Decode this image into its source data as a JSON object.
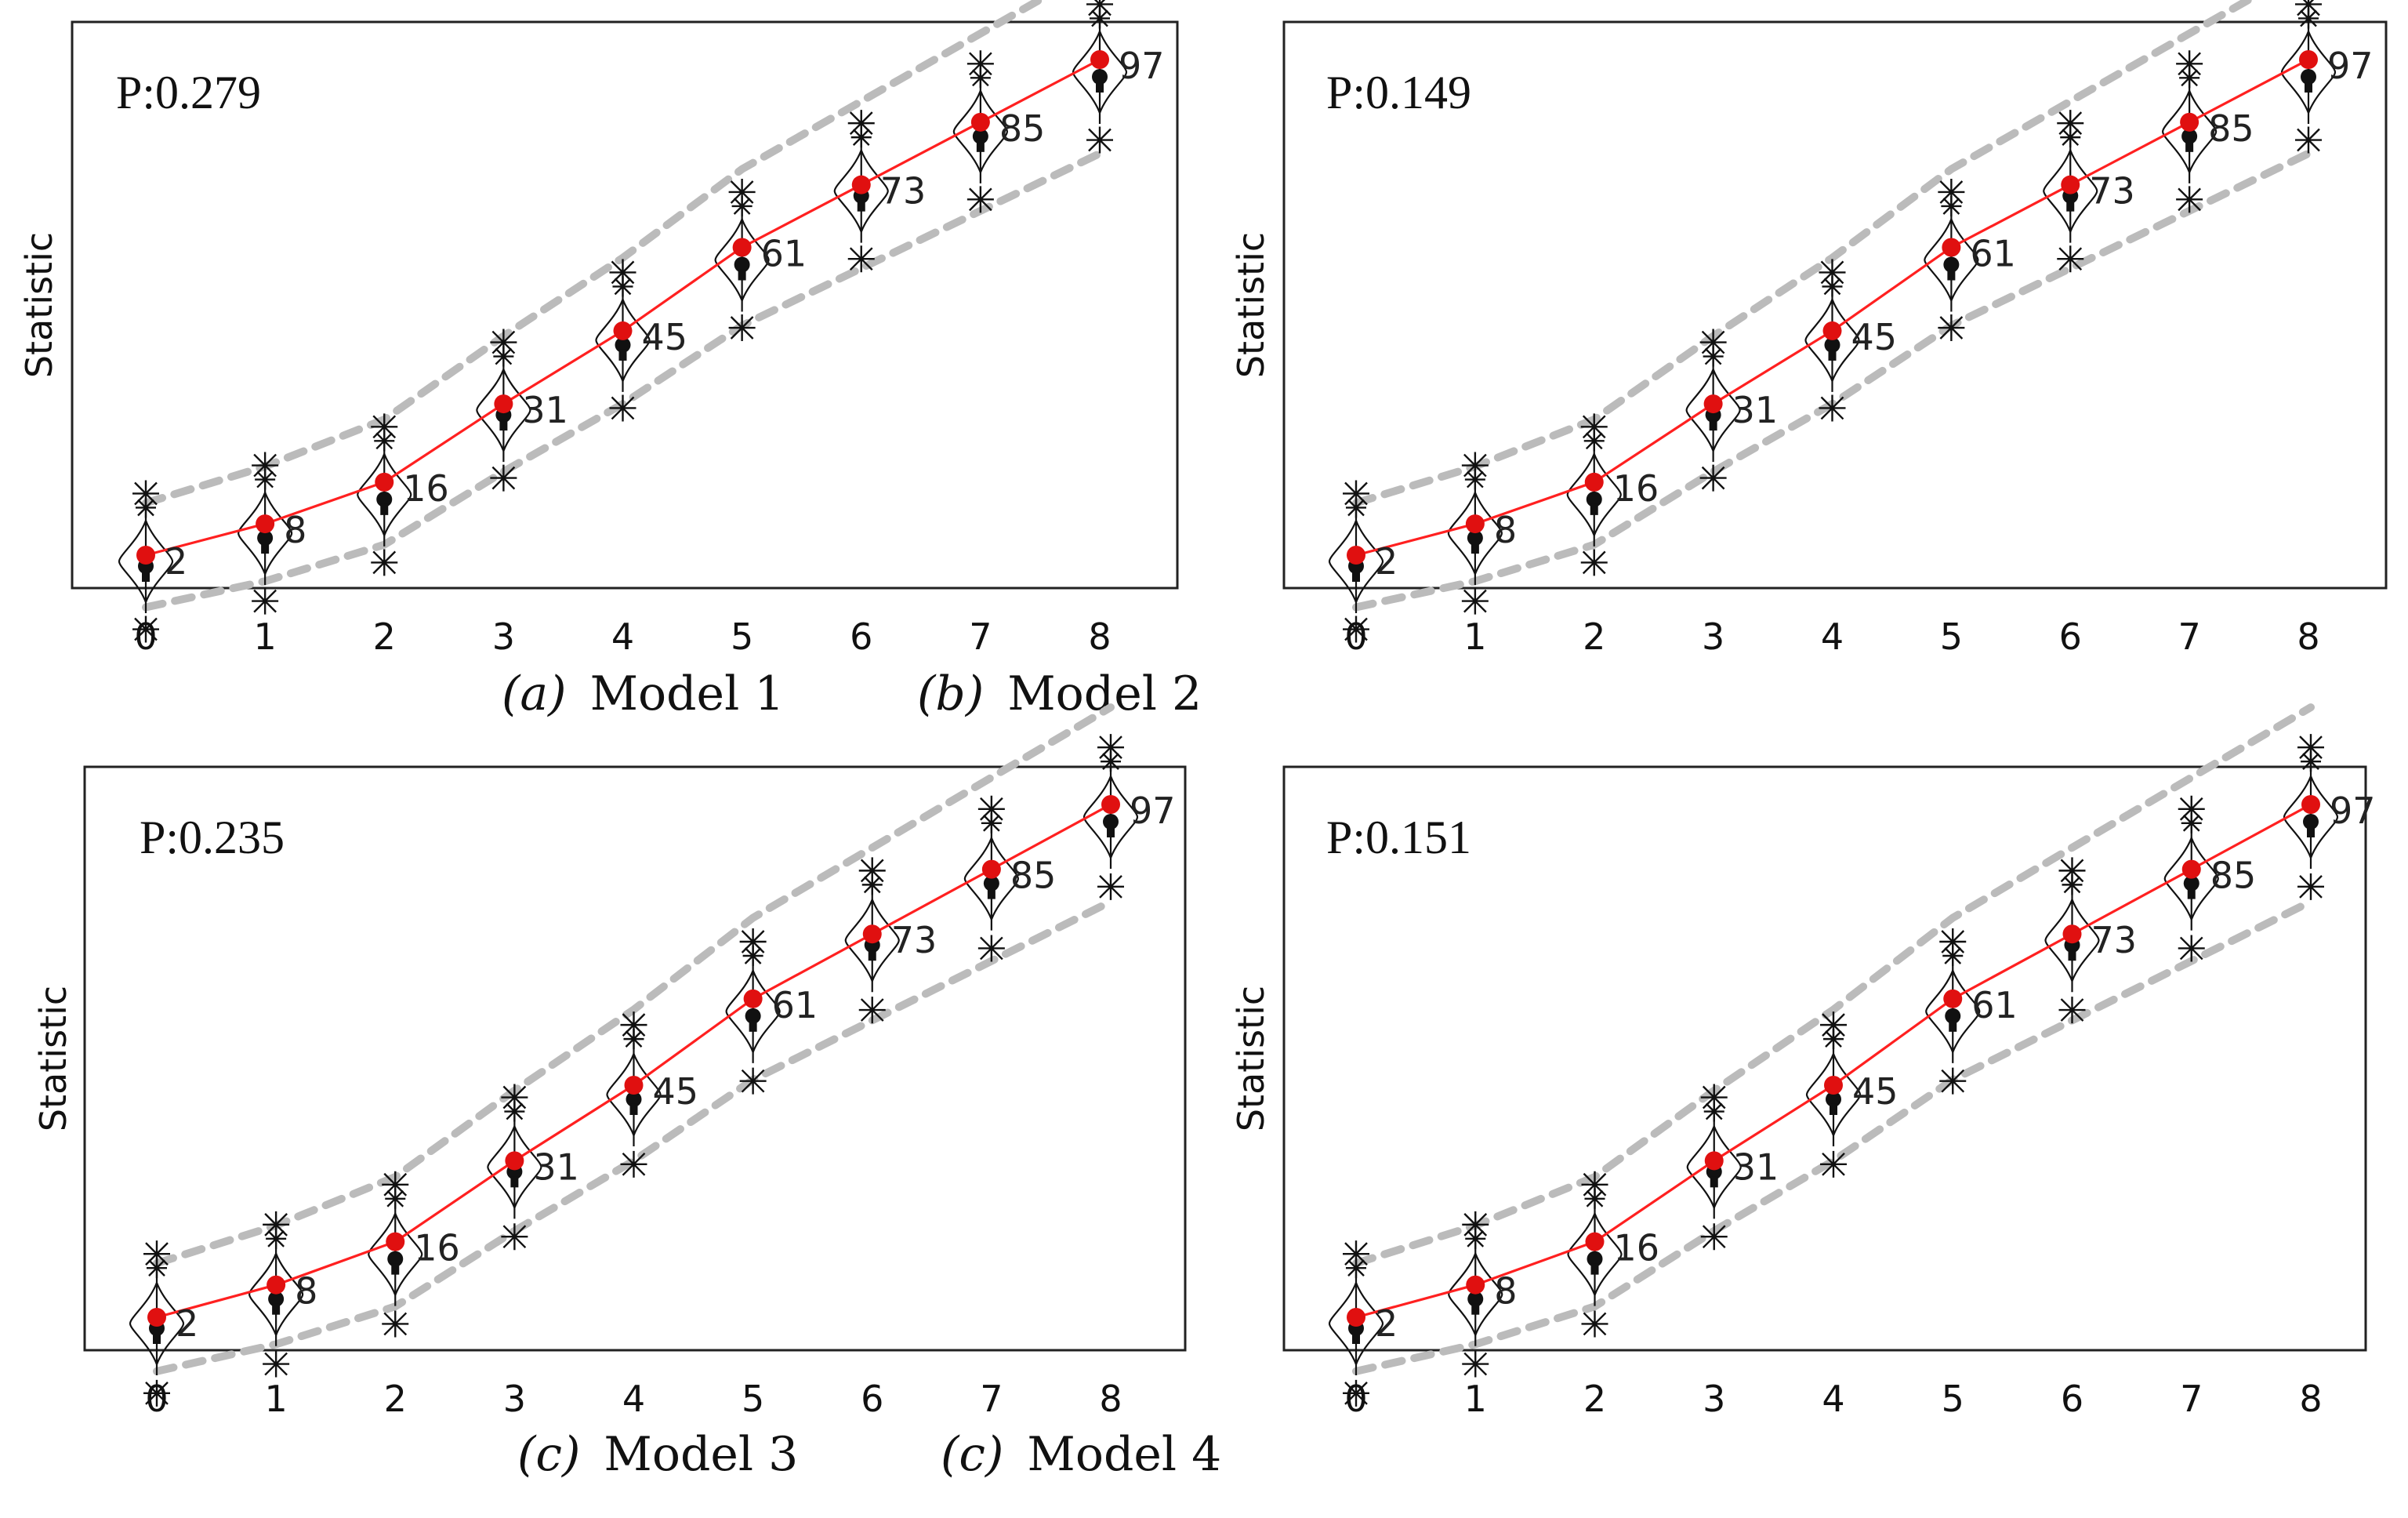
{
  "chart_data": [
    {
      "type": "line",
      "annotation": "P:0.279",
      "caption_label": "(a)",
      "caption_model": "Model 1",
      "ylabel": "Statistic",
      "xlabel": "",
      "x": [
        0,
        1,
        2,
        3,
        4,
        5,
        6,
        7,
        8
      ],
      "values": [
        2,
        8,
        16,
        31,
        45,
        61,
        73,
        85,
        97
      ],
      "data_labels": [
        "2",
        "8",
        "16",
        "31",
        "45",
        "61",
        "73",
        "85",
        "97"
      ],
      "colors": {
        "line": "#ff2020",
        "points": "#e01010",
        "band": "#bbbbbb",
        "glyphs": "#111111"
      }
    },
    {
      "type": "line",
      "annotation": "P:0.149",
      "caption_label": "(b)",
      "caption_model": "Model 2",
      "ylabel": "Statistic",
      "xlabel": "",
      "x": [
        0,
        1,
        2,
        3,
        4,
        5,
        6,
        7,
        8
      ],
      "values": [
        2,
        8,
        16,
        31,
        45,
        61,
        73,
        85,
        97
      ],
      "data_labels": [
        "2",
        "8",
        "16",
        "31",
        "45",
        "61",
        "73",
        "85",
        "97"
      ],
      "colors": {
        "line": "#ff2020",
        "points": "#e01010",
        "band": "#bbbbbb",
        "glyphs": "#111111"
      }
    },
    {
      "type": "line",
      "annotation": "P:0.235",
      "caption_label": "(c)",
      "caption_model": "Model 3",
      "ylabel": "Statistic",
      "xlabel": "",
      "x": [
        0,
        1,
        2,
        3,
        4,
        5,
        6,
        7,
        8
      ],
      "values": [
        2,
        8,
        16,
        31,
        45,
        61,
        73,
        85,
        97
      ],
      "data_labels": [
        "2",
        "8",
        "16",
        "31",
        "45",
        "61",
        "73",
        "85",
        "97"
      ],
      "colors": {
        "line": "#ff2020",
        "points": "#e01010",
        "band": "#bbbbbb",
        "glyphs": "#111111"
      }
    },
    {
      "type": "line",
      "annotation": "P:0.151",
      "caption_label": "(c)",
      "caption_model": "Model 4",
      "ylabel": "Statistic",
      "xlabel": "",
      "x": [
        0,
        1,
        2,
        3,
        4,
        5,
        6,
        7,
        8
      ],
      "values": [
        2,
        8,
        16,
        31,
        45,
        61,
        73,
        85,
        97
      ],
      "data_labels": [
        "2",
        "8",
        "16",
        "31",
        "45",
        "61",
        "73",
        "85",
        "97"
      ],
      "colors": {
        "line": "#ff2020",
        "points": "#e01010",
        "band": "#bbbbbb",
        "glyphs": "#111111"
      }
    }
  ]
}
